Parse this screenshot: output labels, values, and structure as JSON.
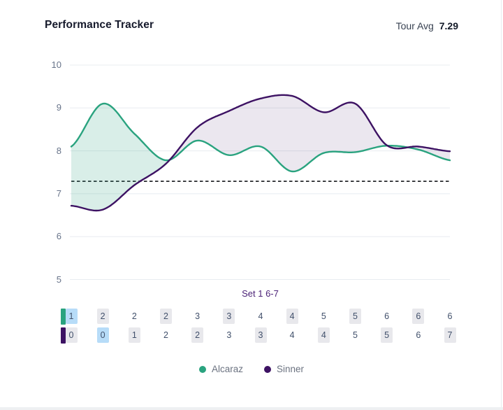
{
  "header": {
    "title": "Performance Tracker",
    "tour_avg_label": "Tour Avg",
    "tour_avg_value": "7.29"
  },
  "chart_data": {
    "type": "area",
    "title": "Performance Tracker",
    "x": [
      1,
      2,
      3,
      4,
      5,
      6,
      7,
      8,
      9,
      10,
      11,
      12,
      13
    ],
    "x_unit": "game",
    "ylim": [
      5,
      10
    ],
    "yticks": [
      10,
      9,
      8,
      7,
      6,
      5
    ],
    "grid": true,
    "legend_position": "bottom",
    "avg_line": {
      "label": "Tour Avg",
      "value": 7.29,
      "style": "dashed",
      "color": "#25272b"
    },
    "set_label": "Set 1 6-7",
    "series": [
      {
        "name": "Alcaraz",
        "color": "#2aa37f",
        "fill": "rgba(42,163,127,0.18)",
        "values": [
          8.1,
          9.1,
          8.4,
          7.78,
          8.24,
          7.9,
          8.1,
          7.52,
          7.95,
          7.97,
          8.12,
          8.03,
          7.78
        ]
      },
      {
        "name": "Sinner",
        "color": "#3d1263",
        "fill": "rgba(61,18,99,0.10)",
        "values": [
          6.72,
          6.63,
          7.2,
          7.7,
          8.55,
          8.93,
          9.22,
          9.28,
          8.9,
          9.1,
          8.13,
          8.1,
          7.99
        ]
      }
    ]
  },
  "score_grid": {
    "highlight_colors": {
      "blue": "#b7dcf8",
      "gray": "#e8e8ec",
      "none": "transparent"
    },
    "rows": [
      {
        "player": "Alcaraz",
        "marker_color": "#2aa37f",
        "cells": [
          {
            "v": "1",
            "bg": "blue"
          },
          {
            "v": "2",
            "bg": "gray"
          },
          {
            "v": "2",
            "bg": "none"
          },
          {
            "v": "2",
            "bg": "gray"
          },
          {
            "v": "3",
            "bg": "none"
          },
          {
            "v": "3",
            "bg": "gray"
          },
          {
            "v": "4",
            "bg": "none"
          },
          {
            "v": "4",
            "bg": "gray"
          },
          {
            "v": "5",
            "bg": "none"
          },
          {
            "v": "5",
            "bg": "gray"
          },
          {
            "v": "6",
            "bg": "none"
          },
          {
            "v": "6",
            "bg": "gray"
          },
          {
            "v": "6",
            "bg": "none"
          }
        ]
      },
      {
        "player": "Sinner",
        "marker_color": "#3d1263",
        "cells": [
          {
            "v": "0",
            "bg": "gray"
          },
          {
            "v": "0",
            "bg": "blue"
          },
          {
            "v": "1",
            "bg": "gray"
          },
          {
            "v": "2",
            "bg": "none"
          },
          {
            "v": "2",
            "bg": "gray"
          },
          {
            "v": "3",
            "bg": "none"
          },
          {
            "v": "3",
            "bg": "gray"
          },
          {
            "v": "4",
            "bg": "none"
          },
          {
            "v": "4",
            "bg": "gray"
          },
          {
            "v": "5",
            "bg": "none"
          },
          {
            "v": "5",
            "bg": "gray"
          },
          {
            "v": "6",
            "bg": "none"
          },
          {
            "v": "7",
            "bg": "gray"
          }
        ]
      }
    ]
  },
  "legend": [
    {
      "label": "Alcaraz",
      "color": "#2aa37f"
    },
    {
      "label": "Sinner",
      "color": "#3d1263"
    }
  ]
}
